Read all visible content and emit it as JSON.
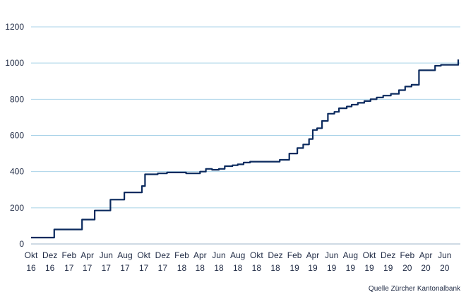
{
  "chart_data": {
    "type": "line",
    "title": "",
    "xlabel": "",
    "ylabel": "",
    "ylim": [
      0,
      1200
    ],
    "y_ticks": [
      0,
      200,
      400,
      600,
      800,
      1000,
      1200
    ],
    "grid": "horizontal",
    "legend": "none",
    "line_color": "#0b2a5e",
    "grid_color": "#a9d3e8",
    "x_tick_labels": [
      {
        "month": "Okt",
        "year": "16"
      },
      {
        "month": "Dez",
        "year": "16"
      },
      {
        "month": "Feb",
        "year": "17"
      },
      {
        "month": "Apr",
        "year": "17"
      },
      {
        "month": "Jun",
        "year": "17"
      },
      {
        "month": "Aug",
        "year": "17"
      },
      {
        "month": "Okt",
        "year": "17"
      },
      {
        "month": "Dez",
        "year": "17"
      },
      {
        "month": "Feb",
        "year": "18"
      },
      {
        "month": "Apr",
        "year": "18"
      },
      {
        "month": "Jun",
        "year": "18"
      },
      {
        "month": "Aug",
        "year": "18"
      },
      {
        "month": "Okt",
        "year": "18"
      },
      {
        "month": "Dez",
        "year": "18"
      },
      {
        "month": "Feb",
        "year": "19"
      },
      {
        "month": "Apr",
        "year": "19"
      },
      {
        "month": "Jun",
        "year": "19"
      },
      {
        "month": "Aug",
        "year": "19"
      },
      {
        "month": "Okt",
        "year": "19"
      },
      {
        "month": "Dez",
        "year": "19"
      },
      {
        "month": "Feb",
        "year": "20"
      },
      {
        "month": "Apr",
        "year": "20"
      },
      {
        "month": "Jun",
        "year": "20"
      }
    ],
    "x": [
      "2016-10-01",
      "2016-11-15",
      "2016-11-16",
      "2016-12-15",
      "2017-01-15",
      "2017-02-10",
      "2017-03-15",
      "2017-04-05",
      "2017-04-25",
      "2017-05-15",
      "2017-06-15",
      "2017-07-15",
      "2017-07-30",
      "2017-08-15",
      "2017-09-10",
      "2017-09-25",
      "2017-10-05",
      "2017-10-20",
      "2017-11-15",
      "2017-12-15",
      "2018-01-15",
      "2018-02-15",
      "2018-03-15",
      "2018-04-01",
      "2018-04-20",
      "2018-05-10",
      "2018-06-01",
      "2018-06-20",
      "2018-07-15",
      "2018-08-01",
      "2018-08-20",
      "2018-09-10",
      "2018-10-15",
      "2018-11-15",
      "2018-12-15",
      "2019-01-15",
      "2019-02-10",
      "2019-03-01",
      "2019-03-20",
      "2019-04-01",
      "2019-04-15",
      "2019-05-01",
      "2019-05-20",
      "2019-06-10",
      "2019-06-25",
      "2019-07-20",
      "2019-08-05",
      "2019-08-25",
      "2019-09-15",
      "2019-10-05",
      "2019-10-25",
      "2019-11-15",
      "2019-12-10",
      "2020-01-05",
      "2020-01-25",
      "2020-02-15",
      "2020-03-10",
      "2020-04-05",
      "2020-05-01",
      "2020-05-20",
      "2020-06-10",
      "2020-06-25",
      "2020-07-15"
    ],
    "series": [
      {
        "values": [
          35,
          35,
          35,
          80,
          80,
          80,
          135,
          135,
          185,
          185,
          245,
          245,
          285,
          285,
          285,
          320,
          385,
          385,
          390,
          395,
          395,
          390,
          390,
          400,
          415,
          410,
          415,
          430,
          435,
          440,
          450,
          455,
          455,
          455,
          465,
          500,
          530,
          550,
          580,
          630,
          640,
          680,
          720,
          730,
          750,
          760,
          770,
          780,
          790,
          800,
          810,
          820,
          830,
          850,
          870,
          880,
          960,
          960,
          985,
          990,
          990,
          990,
          1020
        ]
      }
    ]
  },
  "source": "Quelle Zürcher Kantonalbank"
}
